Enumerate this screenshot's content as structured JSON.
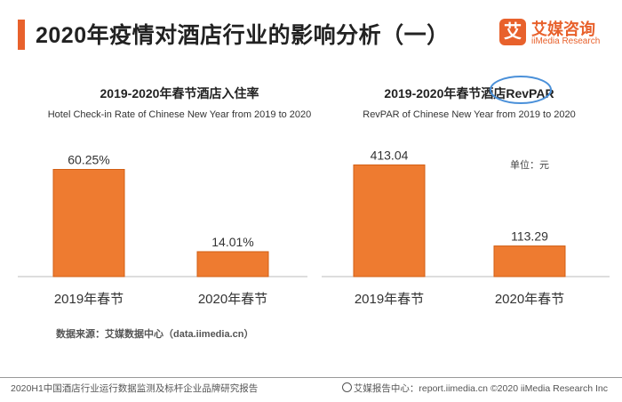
{
  "header": {
    "title": "2020年疫情对酒店行业的影响分析（一）",
    "logo_mark": "艾",
    "logo_name": "艾媒咨询",
    "logo_sub": "iiMedia Research"
  },
  "source_note": "数据来源：艾媒数据中心（data.iimedia.cn）",
  "footer": {
    "left": "2020H1中国酒店行业运行数据监测及标杆企业品牌研究报告",
    "right": "艾媒报告中心：report.iimedia.cn  ©2020  iiMedia Research  Inc"
  },
  "unit_label": "单位：元",
  "colors": {
    "bar": "#EE7B30",
    "accent": "#E8612C",
    "highlight": "#4A90D9"
  },
  "chart_data": [
    {
      "type": "bar",
      "title": "2019-2020年春节酒店入住率",
      "subtitle": "Hotel Check-in Rate of Chinese New Year  from 2019 to 2020",
      "categories": [
        "2019年春节",
        "2020年春节"
      ],
      "values": [
        60.25,
        14.01
      ],
      "value_labels": [
        "60.25%",
        "14.01%"
      ],
      "ylim": [
        0,
        75
      ],
      "grid": false,
      "xlabel": "",
      "ylabel": ""
    },
    {
      "type": "bar",
      "title": "2019-2020年春节酒店RevPAR",
      "subtitle": "RevPAR of Chinese New Year from 2019 to 2020",
      "categories": [
        "2019年春节",
        "2020年春节"
      ],
      "values": [
        413.04,
        113.29
      ],
      "value_labels": [
        "413.04",
        "113.29"
      ],
      "unit": "单位：元",
      "ylim": [
        0,
        500
      ],
      "grid": false,
      "xlabel": "",
      "ylabel": ""
    }
  ]
}
